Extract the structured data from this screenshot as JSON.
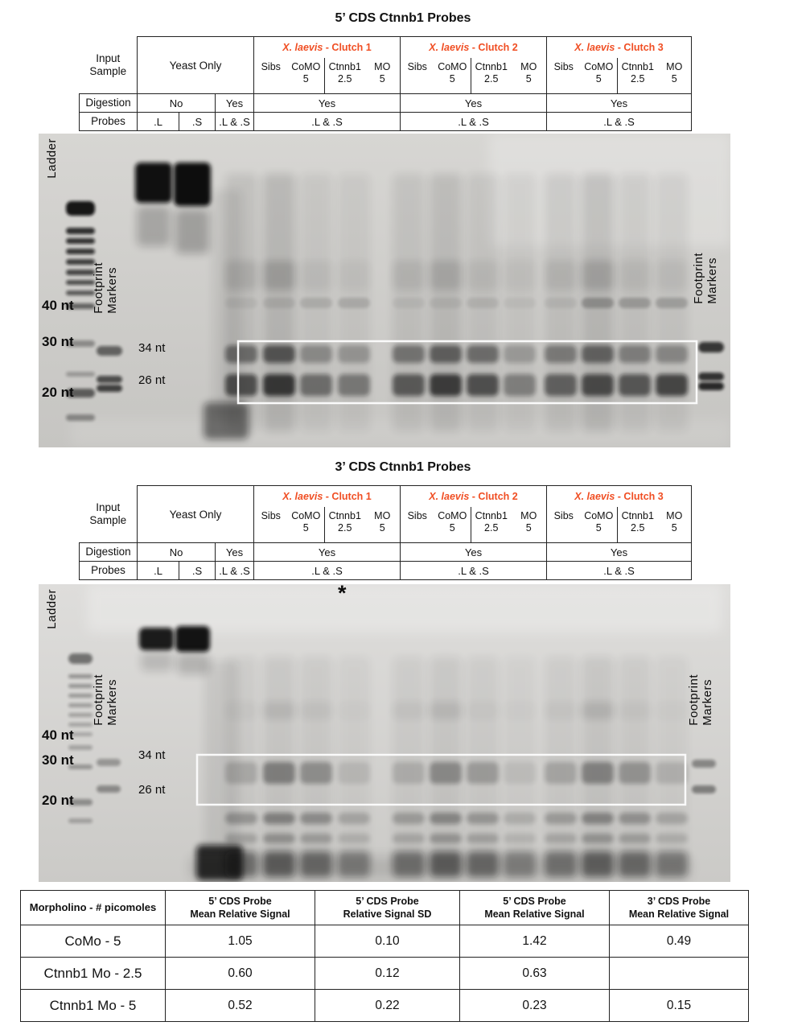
{
  "panel1": {
    "title": "5’ CDS Ctnnb1 Probes"
  },
  "panel2": {
    "title": "3’ CDS Ctnnb1 Probes",
    "asterisk": "*"
  },
  "lane_header": {
    "input_sample": "Input\nSample",
    "yeast_only": "Yeast Only",
    "clutches": [
      {
        "species": "X. laevis",
        "label": "- Clutch 1"
      },
      {
        "species": "X. laevis",
        "label": "- Clutch 2"
      },
      {
        "species": "X. laevis",
        "label": "- Clutch 3"
      }
    ],
    "subcols": [
      {
        "name": "Sibs",
        "dose": ""
      },
      {
        "name": "CoMO",
        "dose": "5"
      },
      {
        "name": "Ctnnb1",
        "dose": "2.5"
      },
      {
        "name": "MO",
        "dose": "5"
      }
    ],
    "digestion_label": "Digestion",
    "digestion_no": "No",
    "digestion_yes": "Yes",
    "probes_label": "Probes",
    "probe_l": ".L",
    "probe_s": ".S",
    "probe_ls": ".L & .S"
  },
  "gel_labels": {
    "ladder": "Ladder",
    "footprint_markers": "Footprint\nMarkers",
    "nt40": "40 nt",
    "nt30": "30 nt",
    "nt20": "20 nt",
    "nt34": "34 nt",
    "nt26": "26 nt"
  },
  "results_table": {
    "headers": [
      "Morpholino - # picomoles",
      "5’ CDS Probe\nMean Relative Signal",
      "5’ CDS Probe\nRelative Signal SD",
      "5’ CDS Probe\nMean Relative Signal",
      "3’ CDS Probe\nMean Relative Signal"
    ],
    "rows": [
      {
        "label": "CoMo - 5",
        "values": [
          "1.05",
          "0.10",
          "1.42",
          "0.49"
        ]
      },
      {
        "label": "Ctnnb1 Mo - 2.5",
        "values": [
          "0.60",
          "0.12",
          "0.63",
          ""
        ]
      },
      {
        "label": "Ctnnb1 Mo - 5",
        "values": [
          "0.52",
          "0.22",
          "0.23",
          "0.15"
        ]
      }
    ]
  },
  "colors": {
    "clutch_header": "#f04e23",
    "asterisk": "#ec008c"
  }
}
